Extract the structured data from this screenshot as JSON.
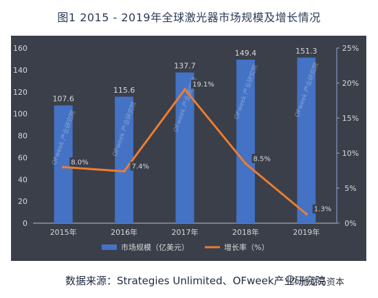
{
  "title": "图1 2015 - 2019年全球激光器市场规模及增长情况",
  "source": "数据来源：Strategies Unlimited、OFweek产业研究院",
  "watermark": "驰龙马资本",
  "colors": {
    "bar": "#4472c4",
    "line": "#ed7d31",
    "background": "#3a3f4a",
    "text": "#d9d9d9"
  },
  "chart_data": {
    "type": "bar",
    "categories": [
      "2015年",
      "2016年",
      "2017年",
      "2018年",
      "2019年"
    ],
    "series": [
      {
        "name": "市场规模（亿美元）",
        "type": "bar",
        "axis": "left",
        "values": [
          107.6,
          115.6,
          137.7,
          149.4,
          151.3
        ],
        "labels": [
          "107.6",
          "115.6",
          "137.7",
          "149.4",
          "151.3"
        ]
      },
      {
        "name": "增长率（%）",
        "type": "line",
        "axis": "right",
        "values": [
          8.0,
          7.4,
          19.1,
          8.5,
          1.3
        ],
        "labels": [
          "8.0%",
          "7.4%",
          "19.1%",
          "8.5%",
          "1.3%"
        ]
      }
    ],
    "y_left": {
      "min": 0,
      "max": 160,
      "ticks": [
        "0",
        "20",
        "40",
        "60",
        "80",
        "100",
        "120",
        "140",
        "160"
      ]
    },
    "y_right": {
      "min": 0,
      "max": 25,
      "ticks": [
        "0%",
        "5%",
        "10%",
        "15%",
        "20%",
        "25%"
      ]
    },
    "legend_position": "bottom",
    "bar_watermark": "OFweek 产业研究院"
  }
}
